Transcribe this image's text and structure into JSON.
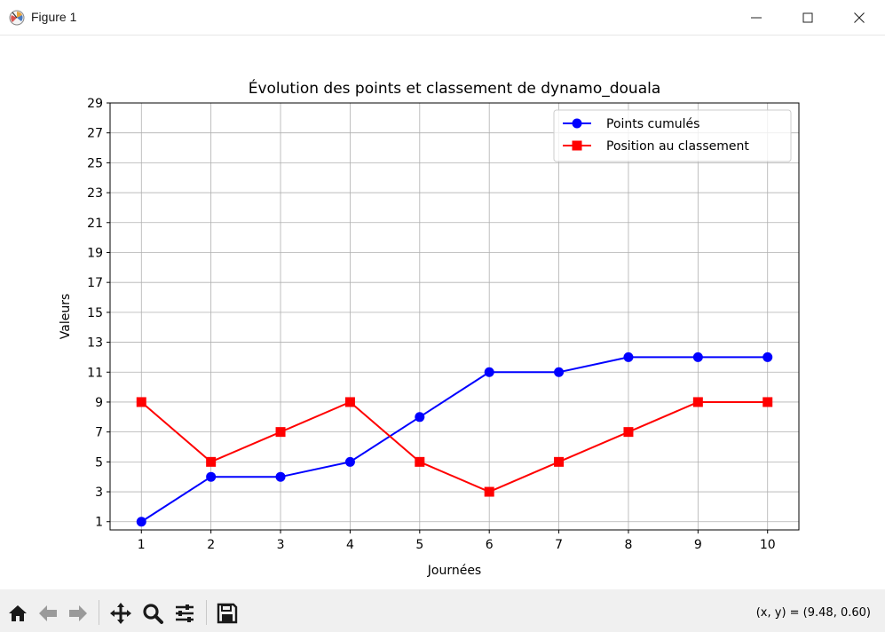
{
  "window": {
    "title": "Figure 1"
  },
  "toolbar": {
    "buttons": [
      "home-icon",
      "back-icon",
      "forward-icon",
      "pan-icon",
      "zoom-icon",
      "configure-subplots-icon",
      "save-icon"
    ],
    "coords": "(x, y) = (9.48, 0.60)"
  },
  "chart_data": {
    "type": "line",
    "title": "Évolution des points et classement de dynamo_douala",
    "xlabel": "Journées",
    "ylabel": "Valeurs",
    "x": [
      1,
      2,
      3,
      4,
      5,
      6,
      7,
      8,
      9,
      10
    ],
    "xlim": [
      0.55,
      10.45
    ],
    "ylim": [
      0.45,
      29
    ],
    "xticks": [
      1,
      2,
      3,
      4,
      5,
      6,
      7,
      8,
      9,
      10
    ],
    "yticks": [
      1,
      3,
      5,
      7,
      9,
      11,
      13,
      15,
      17,
      19,
      21,
      23,
      25,
      27,
      29
    ],
    "grid": true,
    "legend_position": "upper right",
    "series": [
      {
        "name": "Points cumulés",
        "values": [
          1,
          4,
          4,
          5,
          8,
          11,
          11,
          12,
          12,
          12
        ],
        "color": "#0000ff",
        "marker": "circle"
      },
      {
        "name": "Position au classement",
        "values": [
          9,
          5,
          7,
          9,
          5,
          3,
          5,
          7,
          9,
          9
        ],
        "color": "#ff0000",
        "marker": "square"
      }
    ]
  }
}
